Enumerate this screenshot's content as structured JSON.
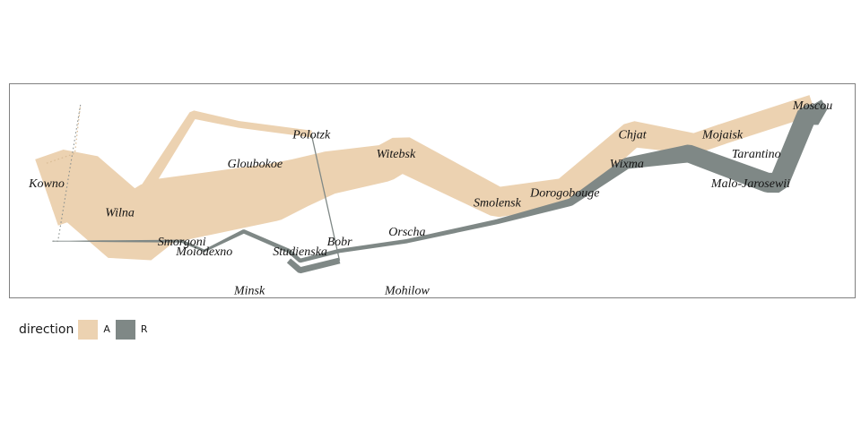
{
  "chart_data": {
    "type": "flow-map",
    "legend": {
      "title": "direction",
      "position": "bottom-left",
      "entries": [
        {
          "label": "A",
          "color": "#ECD2B1"
        },
        {
          "label": "R",
          "color": "#7F8886"
        }
      ]
    },
    "colors": {
      "advance": "#ECD2B1",
      "retreat": "#7F8886",
      "panel_border": "#808080",
      "label_text": "#141414",
      "background": "#ffffff"
    },
    "axes": {
      "x": "longitude",
      "y": "latitude",
      "xlim": [
        24.0,
        37.7
      ],
      "ylim": [
        53.9,
        55.8
      ],
      "grid": false,
      "ticks_shown": false
    },
    "cities": [
      {
        "name": "Kowno",
        "long": 24.0,
        "lat": 55.0
      },
      {
        "name": "Wilna",
        "long": 25.3,
        "lat": 54.7
      },
      {
        "name": "Smorgoni",
        "long": 26.4,
        "lat": 54.4
      },
      {
        "name": "Moiodexno",
        "long": 26.8,
        "lat": 54.3
      },
      {
        "name": "Gloubokoe",
        "long": 27.7,
        "lat": 55.2
      },
      {
        "name": "Minsk",
        "long": 27.6,
        "lat": 53.9
      },
      {
        "name": "Studienska",
        "long": 28.5,
        "lat": 54.3
      },
      {
        "name": "Polotzk",
        "long": 28.7,
        "lat": 55.5
      },
      {
        "name": "Bobr",
        "long": 29.2,
        "lat": 54.4
      },
      {
        "name": "Witebsk",
        "long": 30.2,
        "lat": 55.3
      },
      {
        "name": "Orscha",
        "long": 30.4,
        "lat": 54.5
      },
      {
        "name": "Mohilow",
        "long": 30.4,
        "lat": 53.9
      },
      {
        "name": "Smolensk",
        "long": 32.0,
        "lat": 54.8
      },
      {
        "name": "Dorogobouge",
        "long": 33.2,
        "lat": 54.9
      },
      {
        "name": "Wixma",
        "long": 34.3,
        "lat": 55.2
      },
      {
        "name": "Chjat",
        "long": 34.4,
        "lat": 55.5
      },
      {
        "name": "Mojaisk",
        "long": 36.0,
        "lat": 55.5
      },
      {
        "name": "Moscou",
        "long": 37.6,
        "lat": 55.8
      },
      {
        "name": "Tarantino",
        "long": 36.6,
        "lat": 55.3
      },
      {
        "name": "Malo-Jarosewii",
        "long": 36.5,
        "lat": 55.0
      }
    ],
    "troops": [
      {
        "group": 1,
        "direction": "A",
        "points": [
          [
            24.0,
            54.9,
            340000
          ],
          [
            24.5,
            55.0,
            340000
          ],
          [
            25.5,
            54.5,
            340000
          ],
          [
            26.0,
            54.7,
            320000
          ],
          [
            27.0,
            54.8,
            300000
          ],
          [
            28.0,
            54.9,
            280000
          ],
          [
            28.5,
            55.0,
            240000
          ],
          [
            29.0,
            55.1,
            210000
          ],
          [
            30.0,
            55.2,
            180000
          ],
          [
            30.3,
            55.3,
            175000
          ],
          [
            32.0,
            54.8,
            145000
          ],
          [
            33.2,
            54.9,
            140000
          ],
          [
            34.4,
            55.5,
            127100
          ],
          [
            35.5,
            55.4,
            100000
          ],
          [
            36.0,
            55.5,
            100000
          ],
          [
            37.6,
            55.8,
            100000
          ]
        ]
      },
      {
        "group": 1,
        "direction": "R",
        "points": [
          [
            37.7,
            55.7,
            100000
          ],
          [
            37.5,
            55.7,
            98000
          ],
          [
            37.0,
            55.0,
            97000
          ],
          [
            36.8,
            55.0,
            96000
          ],
          [
            35.4,
            55.3,
            87000
          ],
          [
            34.3,
            55.2,
            55000
          ],
          [
            33.3,
            54.8,
            37000
          ],
          [
            32.0,
            54.6,
            24000
          ],
          [
            30.4,
            54.4,
            20000
          ],
          [
            29.2,
            54.3,
            20000
          ],
          [
            28.5,
            54.2,
            20000
          ],
          [
            28.3,
            54.3,
            20000
          ],
          [
            27.5,
            54.5,
            20000
          ],
          [
            26.8,
            54.3,
            12000
          ],
          [
            26.4,
            54.4,
            14000
          ],
          [
            25.0,
            54.4,
            8000
          ],
          [
            24.4,
            54.4,
            4000
          ],
          [
            24.1,
            54.4,
            4000
          ]
        ]
      },
      {
        "group": 2,
        "direction": "A",
        "points": [
          [
            24.0,
            55.1,
            60000
          ],
          [
            24.5,
            55.2,
            60000
          ],
          [
            25.5,
            54.7,
            60000
          ],
          [
            26.6,
            55.7,
            40000
          ],
          [
            27.4,
            55.6,
            33000
          ],
          [
            28.7,
            55.5,
            33000
          ]
        ]
      },
      {
        "group": 2,
        "direction": "R",
        "points": [
          [
            29.2,
            54.2,
            30000
          ],
          [
            28.5,
            54.1,
            30000
          ],
          [
            28.3,
            54.2,
            28000
          ]
        ]
      },
      {
        "group": 3,
        "direction": "A",
        "points": [
          [
            24.0,
            55.2,
            22000
          ],
          [
            24.5,
            55.3,
            22000
          ],
          [
            24.6,
            55.8,
            6000
          ]
        ]
      },
      {
        "group": 3,
        "direction": "R",
        "points": [
          [
            24.6,
            55.8,
            6000
          ],
          [
            24.2,
            54.4,
            6000
          ],
          [
            24.1,
            54.4,
            6000
          ]
        ]
      }
    ]
  }
}
